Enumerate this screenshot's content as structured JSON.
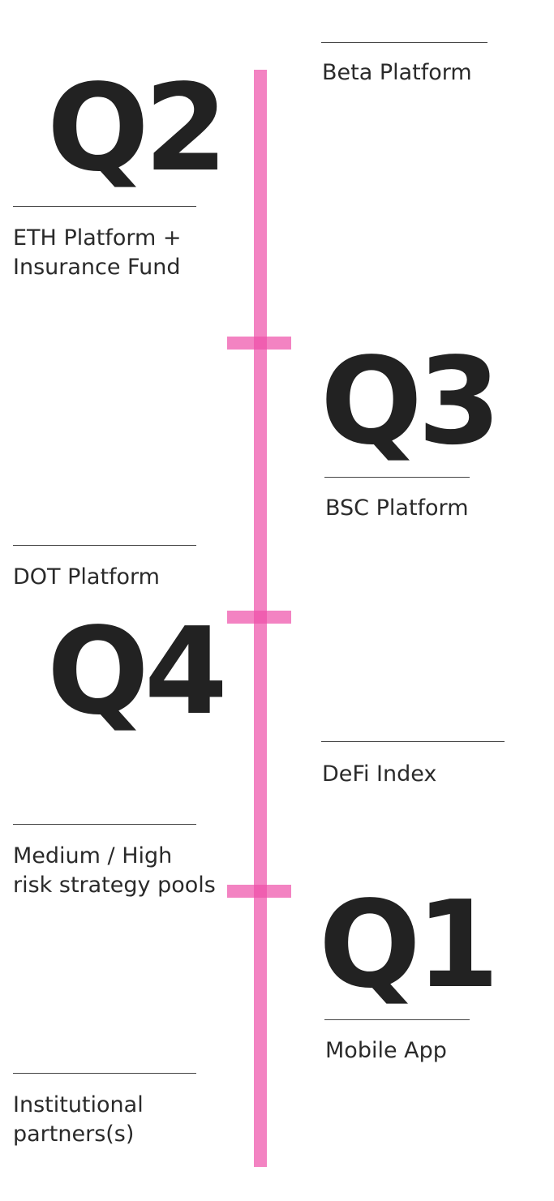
{
  "colors": {
    "spine": "#ee4fa8",
    "text": "#222222",
    "rule": "#444444"
  },
  "quarters": {
    "q2": "Q2",
    "q3": "Q3",
    "q4": "Q4",
    "q1": "Q1"
  },
  "milestones": {
    "beta_platform": "Beta Platform",
    "eth_platform": "ETH Platform +\nInsurance Fund",
    "bsc_platform": "BSC Platform",
    "dot_platform": "DOT Platform",
    "defi_index": "DeFi Index",
    "risk_pools": "Medium / High\nrisk strategy pools",
    "mobile_app": "Mobile App",
    "institutional": "Institutional\npartners(s)"
  }
}
